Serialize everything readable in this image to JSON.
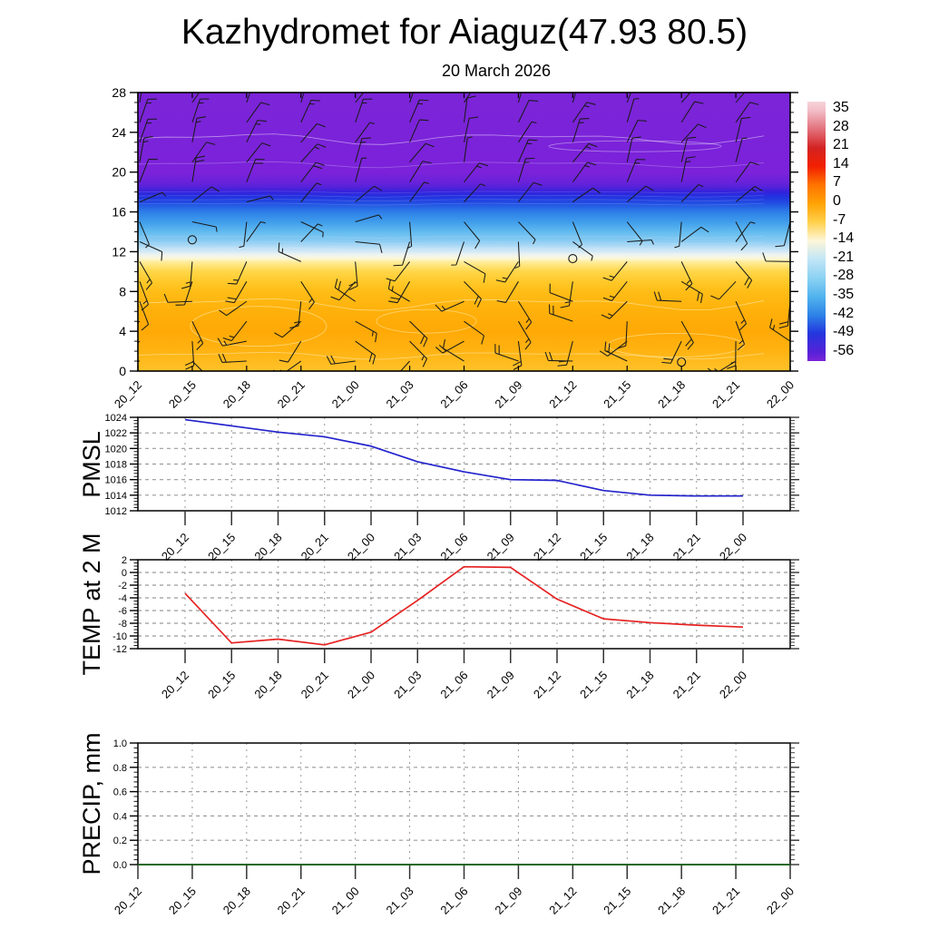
{
  "title": "Kazhydromet for Aiaguz(47.93 80.5)",
  "subtitle": "20 March 2026",
  "time_labels": [
    "20_12",
    "20_15",
    "20_18",
    "20_21",
    "21_00",
    "21_03",
    "21_06",
    "21_09",
    "21_12",
    "21_15",
    "21_18",
    "21_21",
    "22_00"
  ],
  "chart_data": [
    {
      "id": "temp_height_cross_section",
      "type": "heatmap",
      "x": [
        "20_12",
        "20_15",
        "20_18",
        "20_21",
        "21_00",
        "21_03",
        "21_06",
        "21_09",
        "21_12",
        "21_15",
        "21_18",
        "21_21",
        "22_00"
      ],
      "ylim": [
        0,
        28
      ],
      "yticks": [
        0,
        4,
        8,
        12,
        16,
        20,
        24,
        28
      ],
      "grid": false,
      "legend_position": "right-colorbar",
      "colorbar": {
        "ticks": [
          "35",
          "28",
          "21",
          "14",
          "7",
          "0",
          "-7",
          "-14",
          "-21",
          "-28",
          "-35",
          "-42",
          "-49",
          "-56"
        ],
        "gradient_stops": [
          {
            "pct": 0,
            "color": "#f8d4da"
          },
          {
            "pct": 3.6,
            "color": "#f2bcc6"
          },
          {
            "pct": 10.7,
            "color": "#e2707a"
          },
          {
            "pct": 17.9,
            "color": "#d42222"
          },
          {
            "pct": 25,
            "color": "#f22000"
          },
          {
            "pct": 32.1,
            "color": "#ff7300"
          },
          {
            "pct": 39.3,
            "color": "#ffa304"
          },
          {
            "pct": 46.4,
            "color": "#ffd04a"
          },
          {
            "pct": 53.6,
            "color": "#fdf6d8"
          },
          {
            "pct": 60.7,
            "color": "#c2e6f7"
          },
          {
            "pct": 67.9,
            "color": "#8cd2f3"
          },
          {
            "pct": 75,
            "color": "#52b4ee"
          },
          {
            "pct": 82.1,
            "color": "#2e84e7"
          },
          {
            "pct": 89.3,
            "color": "#2336de"
          },
          {
            "pct": 96.4,
            "color": "#5522d8"
          },
          {
            "pct": 100,
            "color": "#7b24d8"
          }
        ]
      },
      "temp_profile_by_height": [
        {
          "h": 0,
          "t": 0
        },
        {
          "h": 4,
          "t": 6
        },
        {
          "h": 9,
          "t": 1
        },
        {
          "h": 11,
          "t": -9
        },
        {
          "h": 12,
          "t": -16
        },
        {
          "h": 14,
          "t": -24
        },
        {
          "h": 16,
          "t": -33
        },
        {
          "h": 17,
          "t": -41
        },
        {
          "h": 18,
          "t": -49
        },
        {
          "h": 19,
          "t": -56
        },
        {
          "h": 28,
          "t": -58
        }
      ],
      "field_gradient_stops": [
        {
          "pct": 0,
          "color": "#7b24d8"
        },
        {
          "pct": 28.6,
          "color": "#7b22da"
        },
        {
          "pct": 32.1,
          "color": "#6a22da"
        },
        {
          "pct": 33.9,
          "color": "#5522d9"
        },
        {
          "pct": 35.7,
          "color": "#3322dc"
        },
        {
          "pct": 37.5,
          "color": "#2233e0"
        },
        {
          "pct": 39.3,
          "color": "#2248e2"
        },
        {
          "pct": 41.1,
          "color": "#2563e5"
        },
        {
          "pct": 42.9,
          "color": "#2e7fe8"
        },
        {
          "pct": 46.4,
          "color": "#3f9deb"
        },
        {
          "pct": 50,
          "color": "#62bbef"
        },
        {
          "pct": 53.6,
          "color": "#8ecdf3"
        },
        {
          "pct": 55.4,
          "color": "#b5ddf5"
        },
        {
          "pct": 57.1,
          "color": "#d5eaf7"
        },
        {
          "pct": 58.2,
          "color": "#eef3ef"
        },
        {
          "pct": 59.6,
          "color": "#fbf7d9"
        },
        {
          "pct": 60.7,
          "color": "#ffeda0"
        },
        {
          "pct": 62.5,
          "color": "#ffe270"
        },
        {
          "pct": 64.3,
          "color": "#ffd648"
        },
        {
          "pct": 67.9,
          "color": "#ffc929"
        },
        {
          "pct": 71.4,
          "color": "#ffbd17"
        },
        {
          "pct": 78.6,
          "color": "#ffb00a"
        },
        {
          "pct": 85.7,
          "color": "#ffa906"
        },
        {
          "pct": 92.9,
          "color": "#ffb312"
        },
        {
          "pct": 100,
          "color": "#ffc22a"
        }
      ],
      "wind_barbs": {
        "levels": [
          1,
          3,
          5,
          7,
          9,
          11,
          13,
          15,
          17,
          19,
          21,
          23,
          25,
          27
        ],
        "bands": [
          {
            "h_min": 19,
            "h_max": 28,
            "dir_from_deg": 25,
            "speed_kt": 15,
            "jitter_deg": 18
          },
          {
            "h_min": 16.5,
            "h_max": 19,
            "dir_from_deg": 60,
            "speed_kt": 10,
            "jitter_deg": 30
          },
          {
            "h_min": 11.5,
            "h_max": 16.5,
            "dir_from_deg": 120,
            "speed_kt": 8,
            "jitter_deg": 85
          },
          {
            "h_min": 0,
            "h_max": 11.5,
            "dir_from_deg": 210,
            "speed_kt": 18,
            "jitter_deg": 95
          }
        ]
      },
      "calm_markers": [
        {
          "time_index": 1,
          "height": 13.2
        },
        {
          "time_index": 8,
          "height": 11.3
        },
        {
          "time_index": 10,
          "height": 0.9
        }
      ]
    },
    {
      "id": "pmsl",
      "type": "line",
      "ylabel": "PMSL",
      "x": [
        "20_12",
        "20_15",
        "20_18",
        "20_21",
        "21_00",
        "21_03",
        "21_06",
        "21_09",
        "21_12",
        "21_15",
        "21_18",
        "21_21",
        "22_00"
      ],
      "values": [
        1023.7,
        1022.9,
        1022.1,
        1021.5,
        1020.3,
        1018.3,
        1017.0,
        1016.0,
        1015.9,
        1014.6,
        1014.0,
        1013.9,
        1013.9
      ],
      "ylim": [
        1012,
        1024
      ],
      "ytick_step": 2,
      "ytick_decimals": 0,
      "minor_per_major": 4,
      "grid": true,
      "line_color": "#2323cd",
      "x_padding": true
    },
    {
      "id": "temp2m",
      "type": "line",
      "ylabel": "TEMP at 2 M",
      "x": [
        "20_12",
        "20_15",
        "20_18",
        "20_21",
        "21_00",
        "21_03",
        "21_06",
        "21_09",
        "21_12",
        "21_15",
        "21_18",
        "21_21",
        "22_00"
      ],
      "values": [
        -3.3,
        -11.1,
        -10.5,
        -11.4,
        -9.4,
        -4.4,
        0.9,
        0.8,
        -4.2,
        -7.3,
        -7.9,
        -8.3,
        -8.6
      ],
      "ylim": [
        -12,
        2
      ],
      "ytick_step": 2,
      "ytick_decimals": 0,
      "minor_per_major": 3,
      "grid": true,
      "line_color": "#e62222",
      "x_padding": true
    },
    {
      "id": "precip",
      "type": "line",
      "ylabel": "PRECIP, mm",
      "x": [
        "20_12",
        "20_15",
        "20_18",
        "20_21",
        "21_00",
        "21_03",
        "21_06",
        "21_09",
        "21_12",
        "21_15",
        "21_18",
        "21_21",
        "22_00"
      ],
      "values": [
        0.0,
        0.0,
        0.0,
        0.0,
        0.0,
        0.0,
        0.0,
        0.0,
        0.0,
        0.0,
        0.0,
        0.0,
        0.0
      ],
      "ylim": [
        0.0,
        1.0
      ],
      "ytick_step": 0.2,
      "ytick_decimals": 1,
      "minor_per_major": 4,
      "grid": true,
      "line_color": "#156615",
      "x_padding": false
    }
  ]
}
